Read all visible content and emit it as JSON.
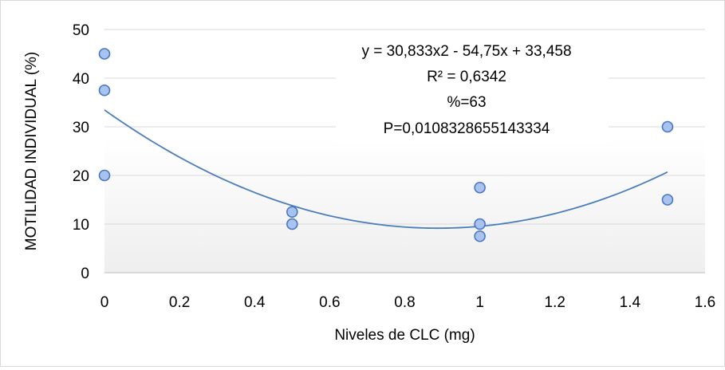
{
  "chart_data": {
    "type": "scatter",
    "title": "",
    "xlabel": "Niveles de CLC (mg)",
    "ylabel": "MOTILIDAD INDIVIDUAL (%)",
    "xlim": [
      0,
      1.6
    ],
    "ylim": [
      0,
      50
    ],
    "x_ticks": [
      "0",
      "0.2",
      "0.4",
      "0.6",
      "0.8",
      "1",
      "1.2",
      "1.4",
      "1.6"
    ],
    "y_ticks": [
      "0",
      "10",
      "20",
      "30",
      "40",
      "50"
    ],
    "grid": "horizontal",
    "legend": "none",
    "series": [
      {
        "points": [
          {
            "x": 0,
            "y": 45
          },
          {
            "x": 0,
            "y": 37.5
          },
          {
            "x": 0,
            "y": 20
          },
          {
            "x": 0.5,
            "y": 12.5
          },
          {
            "x": 0.5,
            "y": 10
          },
          {
            "x": 1,
            "y": 17.5
          },
          {
            "x": 1,
            "y": 10
          },
          {
            "x": 1,
            "y": 7.5
          },
          {
            "x": 1.5,
            "y": 30
          },
          {
            "x": 1.5,
            "y": 15
          }
        ],
        "marker_fill": "#a7c3ee",
        "marker_edge": "#4a76c3"
      }
    ],
    "trendline": {
      "type": "polynomial",
      "coefficients": [
        30.833,
        -54.75,
        33.458
      ],
      "x_range": [
        0,
        1.5
      ],
      "color": "#4a7ebb"
    },
    "annotation": {
      "lines": [
        "y = 30,833x2 - 54,75x + 33,458",
        "R² = 0,6342",
        "%=63",
        "P=0,0108328655143334"
      ]
    }
  }
}
